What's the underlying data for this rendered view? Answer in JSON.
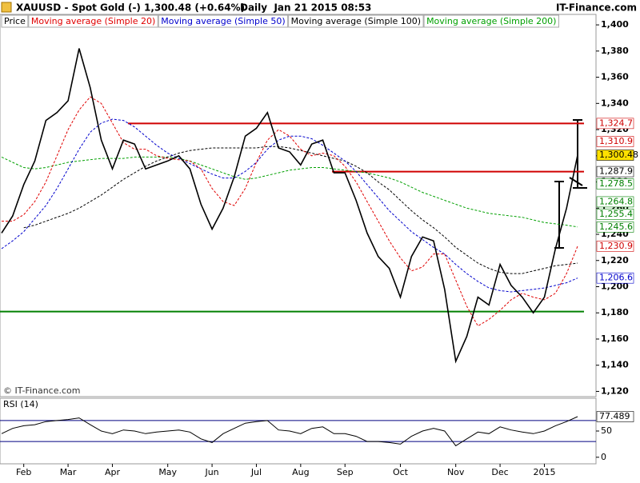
{
  "header": {
    "symbol": "XAUUSD - Spot Gold (-)",
    "quote": "1,300.48 (+0.64%)",
    "info": "Daily  Jan 21 2015 08:53",
    "site": "IT-Finance.com",
    "watermark": "© IT-Finance.com"
  },
  "chart_data": [
    {
      "type": "line",
      "categories": [
        null,
        null,
        "Feb",
        null,
        null,
        null,
        "Mar",
        null,
        null,
        null,
        "Apr",
        null,
        null,
        null,
        null,
        "May",
        null,
        null,
        null,
        "Jun",
        null,
        null,
        null,
        "Jul",
        null,
        null,
        null,
        "Aug",
        null,
        null,
        null,
        "Sep",
        null,
        null,
        null,
        null,
        "Oct",
        null,
        null,
        null,
        null,
        "Nov",
        null,
        null,
        null,
        "Dec",
        null,
        null,
        null,
        "2015",
        null,
        null,
        null
      ],
      "series": [
        {
          "name": "Price",
          "color": "#000000",
          "dashed": false,
          "values": [
            1241,
            1254,
            1278,
            1296,
            1327,
            1333,
            1342,
            1382,
            1352,
            1312,
            1290,
            1312,
            1309,
            1290,
            1293,
            1296,
            1300,
            1290,
            1263,
            1244,
            1260,
            1284,
            1315,
            1321,
            1333,
            1306,
            1303,
            1293,
            1309,
            1312,
            1287,
            1287,
            1266,
            1241,
            1223,
            1214,
            1192,
            1223,
            1238,
            1235,
            1198,
            1143,
            1162,
            1192,
            1186,
            1217,
            1201,
            1192,
            1180,
            1192,
            1229,
            1260,
            1300.48
          ]
        },
        {
          "name": "Moving average (Simple 20)",
          "color": "#e00000",
          "dashed": true,
          "values": [
            1250,
            1250,
            1255,
            1265,
            1280,
            1300,
            1320,
            1335,
            1345,
            1340,
            1325,
            1310,
            1305,
            1305,
            1300,
            1298,
            1297,
            1296,
            1290,
            1275,
            1265,
            1262,
            1275,
            1295,
            1312,
            1320,
            1315,
            1305,
            1300,
            1302,
            1300,
            1292,
            1280,
            1265,
            1250,
            1235,
            1222,
            1212,
            1215,
            1225,
            1225,
            1205,
            1185,
            1170,
            1175,
            1182,
            1190,
            1195,
            1192,
            1190,
            1195,
            1210,
            1230.9
          ]
        },
        {
          "name": "Moving average (Simple 50)",
          "color": "#0000cc",
          "dashed": true,
          "values": [
            1229,
            1235,
            1242,
            1252,
            1262,
            1275,
            1290,
            1305,
            1318,
            1325,
            1328,
            1327,
            1322,
            1315,
            1308,
            1302,
            1298,
            1294,
            1290,
            1286,
            1283,
            1283,
            1288,
            1295,
            1305,
            1312,
            1315,
            1315,
            1313,
            1308,
            1302,
            1296,
            1288,
            1278,
            1268,
            1258,
            1250,
            1242,
            1236,
            1230,
            1225,
            1217,
            1210,
            1204,
            1199,
            1197,
            1196,
            1197,
            1198,
            1199,
            1201,
            1203,
            1206.6
          ]
        },
        {
          "name": "Moving average (Simple 100)",
          "color": "#000000",
          "dashed": true,
          "values": [
            null,
            null,
            1245,
            1247,
            1250,
            1253,
            1256,
            1260,
            1265,
            1270,
            1276,
            1282,
            1287,
            1292,
            1296,
            1299,
            1302,
            1304,
            1305,
            1306,
            1306,
            1306,
            1306,
            1306,
            1307,
            1307,
            1306,
            1304,
            1302,
            1300,
            1298,
            1296,
            1292,
            1287,
            1280,
            1274,
            1266,
            1258,
            1251,
            1245,
            1238,
            1230,
            1224,
            1218,
            1214,
            1211,
            1210,
            1210,
            1212,
            1214,
            1216,
            1217,
            1218
          ]
        },
        {
          "name": "Moving average (Simple 200)",
          "color": "#00a000",
          "dashed": true,
          "values": [
            1299,
            1295,
            1291,
            1290,
            1291,
            1293,
            1295,
            1296,
            1297,
            1298,
            1298,
            1298,
            1299,
            1299,
            1299,
            1299,
            1298,
            1296,
            1293,
            1290,
            1287,
            1284,
            1282,
            1283,
            1285,
            1287,
            1289,
            1290,
            1291,
            1291,
            1290,
            1289,
            1288,
            1287,
            1285,
            1283,
            1280,
            1276,
            1272,
            1269,
            1266,
            1263,
            1260,
            1258,
            1256,
            1255,
            1254,
            1253,
            1251,
            1249,
            1248,
            1247,
            1245.6
          ]
        }
      ],
      "ylim": [
        1116,
        1408
      ],
      "yticks": [
        {
          "value": 1120,
          "label": "1,120"
        },
        {
          "value": 1140,
          "label": "1,140"
        },
        {
          "value": 1160,
          "label": "1,160"
        },
        {
          "value": 1180,
          "label": "1,180"
        },
        {
          "value": 1200,
          "label": "1,200"
        },
        {
          "value": 1220,
          "label": "1,220"
        },
        {
          "value": 1240,
          "label": "1,240"
        },
        {
          "value": 1260,
          "label": "1,260"
        },
        {
          "value": 1280,
          "label": "1,280"
        },
        {
          "value": 1300,
          "label": "1,300"
        },
        {
          "value": 1320,
          "label": "1,320"
        },
        {
          "value": 1340,
          "label": "1,340"
        },
        {
          "value": 1360,
          "label": "1,360"
        },
        {
          "value": 1380,
          "label": "1,380"
        },
        {
          "value": 1400,
          "label": "1,400"
        }
      ],
      "hlines": [
        {
          "value": 1324.7,
          "color": "#d00000"
        },
        {
          "value": 1287.9,
          "color": "#d00000"
        },
        {
          "value": 1181,
          "color": "#008000"
        }
      ],
      "price_labels": [
        {
          "value": 1324.7,
          "label": "1,324.7",
          "color": "#d00000",
          "background": "#ffffff"
        },
        {
          "value": 1310.9,
          "label": "1,310.9",
          "color": "#d00000",
          "background": "#ffffff"
        },
        {
          "value": 1300.48,
          "label": "1,300.48",
          "color": "#000000",
          "background": "#ffe000"
        },
        {
          "value": 1287.9,
          "label": "1,287.9",
          "color": "#000000",
          "background": "#ffffff"
        },
        {
          "value": 1278.5,
          "label": "1,278.5",
          "color": "#008000",
          "background": "#ffffff"
        },
        {
          "value": 1264.8,
          "label": "1,264.8",
          "color": "#008000",
          "background": "#ffffff"
        },
        {
          "value": 1255.4,
          "label": "1,255.4",
          "color": "#008000",
          "background": "#ffffff"
        },
        {
          "value": 1245.6,
          "label": "1,245.6",
          "color": "#008000",
          "background": "#ffffff"
        },
        {
          "value": 1230.9,
          "label": "1,230.9",
          "color": "#d00000",
          "background": "#ffffff"
        },
        {
          "value": 1206.6,
          "label": "1,206.6",
          "color": "#0000cc",
          "background": "#ffffff"
        }
      ]
    },
    {
      "type": "line",
      "title": "RSI (14)",
      "series": [
        {
          "color": "#000000",
          "values": [
            45,
            55,
            60,
            62,
            68,
            70,
            72,
            75,
            62,
            50,
            45,
            52,
            50,
            45,
            48,
            50,
            52,
            48,
            35,
            28,
            45,
            55,
            65,
            68,
            70,
            52,
            50,
            45,
            55,
            58,
            45,
            45,
            40,
            30,
            30,
            28,
            25,
            40,
            50,
            55,
            50,
            22,
            35,
            48,
            45,
            58,
            52,
            48,
            45,
            50,
            60,
            68,
            77.489
          ]
        }
      ],
      "ylim": [
        -12.5,
        112.5
      ],
      "yticks": [
        0,
        50
      ],
      "levels": [
        30,
        70
      ],
      "level_color": "#000080"
    }
  ]
}
